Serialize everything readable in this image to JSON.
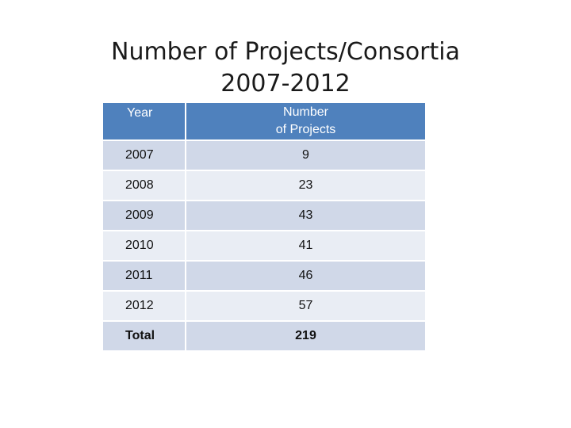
{
  "title": {
    "line1": "Number of Projects/Consortia",
    "line2": "2007-2012"
  },
  "table": {
    "header": {
      "year": "Year",
      "projects_line1": "Number",
      "projects_line2": "of Projects"
    },
    "rows": [
      {
        "year": "2007",
        "projects": "9"
      },
      {
        "year": "2008",
        "projects": "23"
      },
      {
        "year": "2009",
        "projects": "43"
      },
      {
        "year": "2010",
        "projects": "41"
      },
      {
        "year": "2011",
        "projects": "46"
      },
      {
        "year": "2012",
        "projects": "57"
      }
    ],
    "total": {
      "label": "Total",
      "projects": "219"
    }
  },
  "colors": {
    "header_bg": "#4f81bd",
    "row_dark": "#d0d8e8",
    "row_light": "#e9edf4"
  }
}
